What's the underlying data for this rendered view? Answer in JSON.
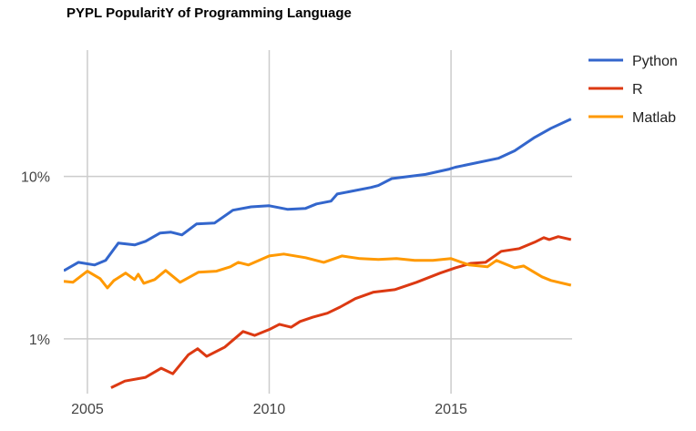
{
  "chart_data": {
    "type": "line",
    "title": "PYPL PopularitY of Programming Language",
    "xlabel": "",
    "ylabel": "",
    "yscale": "log",
    "xlim": [
      2004.35,
      2018.33
    ],
    "ylim": [
      0.46,
      60
    ],
    "grid": true,
    "legend_position": "right",
    "x_ticks": [
      {
        "value": 2005,
        "label": "2005"
      },
      {
        "value": 2010,
        "label": "2010"
      },
      {
        "value": 2015,
        "label": "2015"
      }
    ],
    "y_ticks": [
      {
        "value": 10,
        "label": "10%"
      },
      {
        "value": 1,
        "label": "1%"
      }
    ],
    "series": [
      {
        "name": "Python",
        "color": "#3366cc",
        "points": [
          [
            2004.35,
            2.63
          ],
          [
            2004.75,
            2.96
          ],
          [
            2005.2,
            2.85
          ],
          [
            2005.5,
            3.04
          ],
          [
            2005.85,
            3.89
          ],
          [
            2006.3,
            3.79
          ],
          [
            2006.6,
            3.99
          ],
          [
            2007.0,
            4.49
          ],
          [
            2007.3,
            4.54
          ],
          [
            2007.6,
            4.37
          ],
          [
            2008.0,
            5.1
          ],
          [
            2008.5,
            5.17
          ],
          [
            2009.0,
            6.2
          ],
          [
            2009.5,
            6.5
          ],
          [
            2010.0,
            6.6
          ],
          [
            2010.5,
            6.28
          ],
          [
            2011.0,
            6.36
          ],
          [
            2011.3,
            6.78
          ],
          [
            2011.7,
            7.05
          ],
          [
            2011.87,
            7.8
          ],
          [
            2012.8,
            8.56
          ],
          [
            2013.0,
            8.8
          ],
          [
            2013.37,
            9.7
          ],
          [
            2014.3,
            10.3
          ],
          [
            2014.95,
            11.1
          ],
          [
            2015.12,
            11.4
          ],
          [
            2016.3,
            12.95
          ],
          [
            2016.75,
            14.4
          ],
          [
            2017.3,
            17.4
          ],
          [
            2017.75,
            19.8
          ],
          [
            2018.3,
            22.6
          ]
        ]
      },
      {
        "name": "R",
        "color": "#dc3912",
        "points": [
          [
            2005.65,
            0.5
          ],
          [
            2006.03,
            0.55
          ],
          [
            2006.6,
            0.58
          ],
          [
            2007.03,
            0.66
          ],
          [
            2007.35,
            0.61
          ],
          [
            2007.78,
            0.8
          ],
          [
            2008.03,
            0.87
          ],
          [
            2008.28,
            0.78
          ],
          [
            2008.78,
            0.89
          ],
          [
            2009.28,
            1.11
          ],
          [
            2009.6,
            1.05
          ],
          [
            2010.03,
            1.15
          ],
          [
            2010.28,
            1.23
          ],
          [
            2010.6,
            1.18
          ],
          [
            2010.85,
            1.28
          ],
          [
            2011.2,
            1.36
          ],
          [
            2011.6,
            1.44
          ],
          [
            2011.95,
            1.57
          ],
          [
            2012.37,
            1.77
          ],
          [
            2012.87,
            1.94
          ],
          [
            2013.45,
            2.01
          ],
          [
            2014.05,
            2.23
          ],
          [
            2014.7,
            2.54
          ],
          [
            2015.12,
            2.74
          ],
          [
            2015.55,
            2.92
          ],
          [
            2015.95,
            2.96
          ],
          [
            2016.38,
            3.46
          ],
          [
            2016.88,
            3.6
          ],
          [
            2017.3,
            3.94
          ],
          [
            2017.55,
            4.2
          ],
          [
            2017.7,
            4.09
          ],
          [
            2017.95,
            4.26
          ],
          [
            2018.3,
            4.09
          ]
        ]
      },
      {
        "name": "Matlab",
        "color": "#ff9900",
        "points": [
          [
            2004.35,
            2.26
          ],
          [
            2004.6,
            2.23
          ],
          [
            2005.0,
            2.61
          ],
          [
            2005.35,
            2.35
          ],
          [
            2005.55,
            2.06
          ],
          [
            2005.73,
            2.29
          ],
          [
            2006.05,
            2.54
          ],
          [
            2006.3,
            2.32
          ],
          [
            2006.4,
            2.5
          ],
          [
            2006.55,
            2.2
          ],
          [
            2006.85,
            2.32
          ],
          [
            2007.15,
            2.64
          ],
          [
            2007.55,
            2.23
          ],
          [
            2008.05,
            2.57
          ],
          [
            2008.55,
            2.61
          ],
          [
            2008.93,
            2.78
          ],
          [
            2009.15,
            2.96
          ],
          [
            2009.43,
            2.85
          ],
          [
            2010.0,
            3.24
          ],
          [
            2010.4,
            3.33
          ],
          [
            2011.0,
            3.16
          ],
          [
            2011.5,
            2.96
          ],
          [
            2012.0,
            3.24
          ],
          [
            2012.5,
            3.12
          ],
          [
            2013.0,
            3.08
          ],
          [
            2013.5,
            3.12
          ],
          [
            2014.0,
            3.04
          ],
          [
            2014.5,
            3.04
          ],
          [
            2015.0,
            3.12
          ],
          [
            2015.5,
            2.85
          ],
          [
            2016.0,
            2.78
          ],
          [
            2016.25,
            3.04
          ],
          [
            2016.75,
            2.74
          ],
          [
            2017.0,
            2.81
          ],
          [
            2017.5,
            2.41
          ],
          [
            2017.75,
            2.29
          ],
          [
            2018.3,
            2.14
          ]
        ]
      }
    ]
  }
}
